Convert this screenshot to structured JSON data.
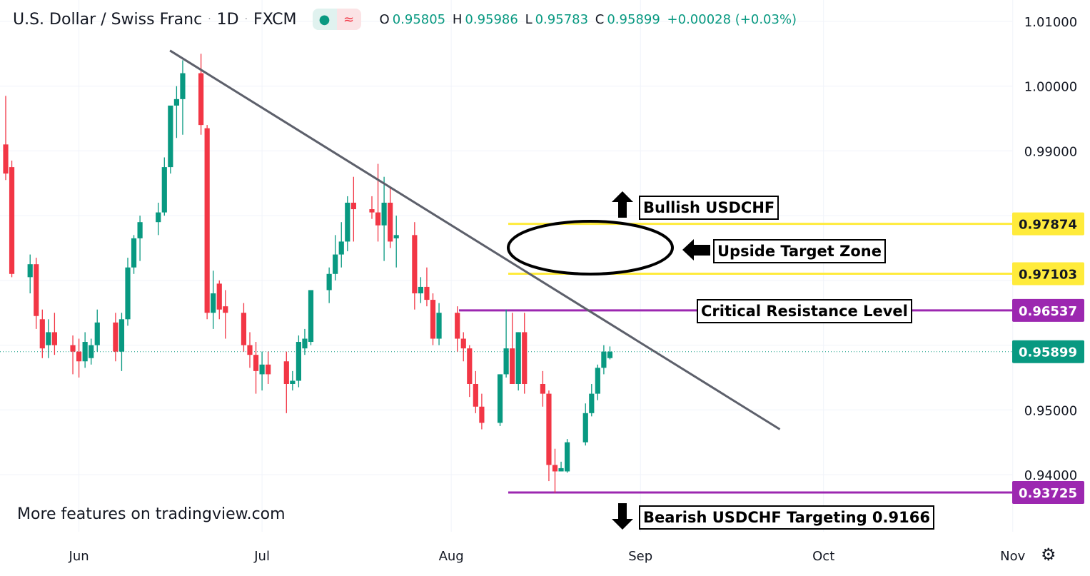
{
  "header": {
    "symbol": "U.S. Dollar / Swiss Franc",
    "interval": "1D",
    "exchange": "FXCM",
    "sep": "·",
    "open_label": "O",
    "open": "0.95805",
    "high_label": "H",
    "high": "0.95986",
    "low_label": "L",
    "low": "0.95783",
    "close_label": "C",
    "close": "0.95899",
    "change": "+0.00028 (+0.03%)"
  },
  "watermark": "More features on tradingview.com",
  "annotations": {
    "bullish": "Bullish USDCHF",
    "target_zone": "Upside Target Zone",
    "resistance": "Critical Resistance Level",
    "bearish": "Bearish USDCHF Targeting 0.9166"
  },
  "colors": {
    "up": "#089981",
    "down": "#f23645",
    "trendline": "#5d606b",
    "zone": "#ffeb3b",
    "level": "#9c27b0",
    "grid": "#f0f3fa",
    "axis_text": "#131722"
  },
  "icons": {
    "settings": "gear-icon",
    "indicator_a": "dot-icon",
    "indicator_b": "wave-icon"
  },
  "chart_data": {
    "type": "candlestick",
    "ylim": [
      0.9325,
      1.0115
    ],
    "y_ticks": [
      "0.94000",
      "0.95000",
      "0.99000",
      "1.00000",
      "1.01000"
    ],
    "x_ticks": [
      {
        "label": "Jun",
        "day": 12
      },
      {
        "label": "Jul",
        "day": 42
      },
      {
        "label": "Aug",
        "day": 73
      },
      {
        "label": "Sep",
        "day": 104
      },
      {
        "label": "Oct",
        "day": 134
      },
      {
        "label": "Nov",
        "day": 165
      }
    ],
    "candles": [
      [
        0.991,
        0.9985,
        0.9855,
        0.9865
      ],
      [
        0.9875,
        0.9885,
        0.9705,
        0.971
      ],
      [
        0.9705,
        0.974,
        0.968,
        0.9725
      ],
      [
        0.9725,
        0.9735,
        0.9625,
        0.9645
      ],
      [
        0.964,
        0.9655,
        0.958,
        0.9595
      ],
      [
        0.96,
        0.964,
        0.958,
        0.962
      ],
      [
        0.962,
        0.965,
        0.9585,
        0.96
      ],
      [
        0.96,
        0.9615,
        0.9555,
        0.959
      ],
      [
        0.959,
        0.961,
        0.955,
        0.9575
      ],
      [
        0.9575,
        0.962,
        0.9565,
        0.9605
      ],
      [
        0.958,
        0.961,
        0.957,
        0.96
      ],
      [
        0.96,
        0.9655,
        0.959,
        0.9635
      ],
      [
        0.9635,
        0.965,
        0.9575,
        0.959
      ],
      [
        0.959,
        0.965,
        0.956,
        0.964
      ],
      [
        0.964,
        0.9735,
        0.963,
        0.972
      ],
      [
        0.972,
        0.977,
        0.971,
        0.9765
      ],
      [
        0.9765,
        0.98,
        0.973,
        0.979
      ],
      [
        0.979,
        0.982,
        0.977,
        0.9805
      ],
      [
        0.9805,
        0.989,
        0.98,
        0.9875
      ],
      [
        0.9875,
        0.9965,
        0.9865,
        0.997
      ],
      [
        0.997,
        1.0,
        0.992,
        0.998
      ],
      [
        0.998,
        1.004,
        0.9925,
        1.002
      ],
      [
        1.002,
        1.005,
        0.9925,
        0.994
      ],
      [
        0.9935,
        0.994,
        0.964,
        0.965
      ],
      [
        0.965,
        0.9715,
        0.9625,
        0.968
      ],
      [
        0.9695,
        0.97,
        0.964,
        0.9655
      ],
      [
        0.966,
        0.9685,
        0.961,
        0.965
      ],
      [
        0.965,
        0.9665,
        0.959,
        0.96
      ],
      [
        0.96,
        0.962,
        0.9565,
        0.9585
      ],
      [
        0.9585,
        0.9605,
        0.9525,
        0.956
      ],
      [
        0.9555,
        0.959,
        0.953,
        0.957
      ],
      [
        0.957,
        0.959,
        0.954,
        0.9555
      ],
      [
        0.9575,
        0.959,
        0.9495,
        0.954
      ],
      [
        0.954,
        0.956,
        0.953,
        0.9545
      ],
      [
        0.9545,
        0.9615,
        0.9535,
        0.9605
      ],
      [
        0.9595,
        0.9625,
        0.9585,
        0.961
      ],
      [
        0.9605,
        0.9685,
        0.96,
        0.9685
      ],
      [
        0.9685,
        0.972,
        0.9665,
        0.971
      ],
      [
        0.971,
        0.977,
        0.97,
        0.974
      ],
      [
        0.974,
        0.979,
        0.972,
        0.976
      ],
      [
        0.976,
        0.983,
        0.9745,
        0.982
      ],
      [
        0.982,
        0.986,
        0.976,
        0.981
      ],
      [
        0.981,
        0.983,
        0.9795,
        0.9805
      ],
      [
        0.9805,
        0.988,
        0.976,
        0.9785
      ],
      [
        0.9785,
        0.986,
        0.973,
        0.982
      ],
      [
        0.982,
        0.9845,
        0.975,
        0.976
      ],
      [
        0.9765,
        0.98,
        0.972,
        0.977
      ],
      [
        0.977,
        0.979,
        0.9655,
        0.968
      ],
      [
        0.968,
        0.9705,
        0.9665,
        0.969
      ],
      [
        0.969,
        0.972,
        0.966,
        0.967
      ],
      [
        0.967,
        0.968,
        0.96,
        0.961
      ],
      [
        0.961,
        0.9665,
        0.96,
        0.965
      ],
      [
        0.965,
        0.966,
        0.959,
        0.961
      ],
      [
        0.961,
        0.962,
        0.9575,
        0.9595
      ],
      [
        0.9595,
        0.96,
        0.952,
        0.954
      ],
      [
        0.954,
        0.956,
        0.9495,
        0.9505
      ],
      [
        0.9505,
        0.9525,
        0.947,
        0.948
      ],
      [
        0.948,
        0.9555,
        0.9475,
        0.9555
      ],
      [
        0.9555,
        0.9655,
        0.955,
        0.9595
      ],
      [
        0.9595,
        0.965,
        0.954,
        0.954
      ],
      [
        0.954,
        0.962,
        0.953,
        0.962
      ],
      [
        0.962,
        0.965,
        0.9525,
        0.954
      ],
      [
        0.954,
        0.956,
        0.9505,
        0.9525
      ],
      [
        0.9525,
        0.953,
        0.939,
        0.9415
      ],
      [
        0.9415,
        0.944,
        0.9372,
        0.9405
      ],
      [
        0.9405,
        0.942,
        0.9405,
        0.941
      ],
      [
        0.9405,
        0.9455,
        0.9403,
        0.945
      ],
      [
        0.945,
        0.951,
        0.9445,
        0.9495
      ],
      [
        0.9495,
        0.954,
        0.949,
        0.9525
      ],
      [
        0.9525,
        0.957,
        0.9515,
        0.9565
      ],
      [
        0.9565,
        0.96,
        0.9555,
        0.959
      ],
      [
        0.958,
        0.9598,
        0.9578,
        0.959
      ]
    ],
    "trendline": {
      "from": [
        22,
        1.0055
      ],
      "to": [
        101,
        0.947
      ]
    },
    "levels": [
      {
        "value": 0.97874,
        "label": "0.97874",
        "type": "zone",
        "from_day": 66
      },
      {
        "value": 0.97103,
        "label": "0.97103",
        "type": "zone",
        "from_day": 66
      },
      {
        "value": 0.96537,
        "label": "0.96537",
        "type": "resistance",
        "from_day": 59
      },
      {
        "value": 0.95899,
        "label": "0.95899",
        "type": "last"
      },
      {
        "value": 0.93725,
        "label": "0.93725",
        "type": "support",
        "from_day": 65
      }
    ]
  }
}
